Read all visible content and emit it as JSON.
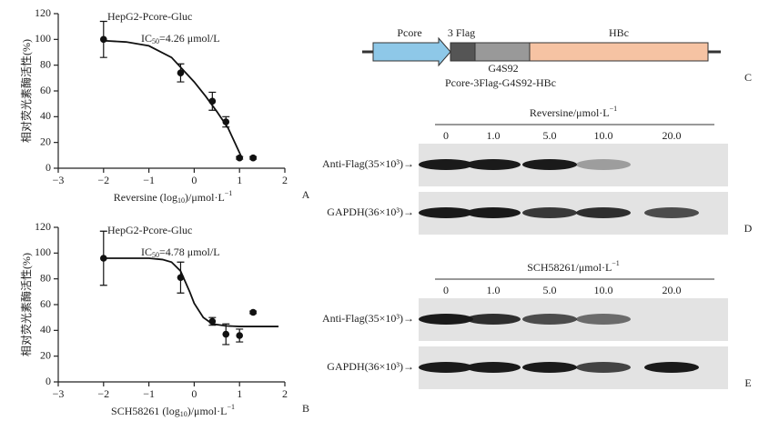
{
  "chart_data": [
    {
      "type": "scatter",
      "panel": "A",
      "title": "HepG2-Pcore-Gluc",
      "annotation": [
        "IC",
        "50",
        "=4.26 μmol/L"
      ],
      "xlabel": [
        "Reversine (log",
        "10",
        ")/μmol·L",
        "−1"
      ],
      "ylabel": "相对荧光素酶活性(%)",
      "x": [
        -2,
        -0.3,
        0.4,
        0.7,
        1,
        1.3
      ],
      "values": [
        100,
        74,
        52,
        36,
        8,
        8
      ],
      "errors": [
        14,
        7,
        7,
        4,
        1,
        1
      ],
      "curve": {
        "x": [
          -2,
          -1.5,
          -1,
          -0.5,
          0,
          0.25,
          0.5,
          0.75,
          1,
          1.05
        ],
        "y": [
          99,
          98,
          95,
          86,
          67,
          56,
          44,
          31,
          12,
          8
        ]
      },
      "xlim": [
        -3,
        2
      ],
      "ylim": [
        0,
        120
      ],
      "xticks": [
        {
          "value": -3,
          "label": "−3"
        },
        {
          "value": -2,
          "label": "−2"
        },
        {
          "value": -1,
          "label": "−1"
        },
        0,
        1,
        2
      ],
      "yticks": [
        0,
        20,
        40,
        60,
        80,
        100,
        120
      ],
      "color": "#111"
    },
    {
      "type": "scatter",
      "panel": "B",
      "title": "HepG2-Pcore-Gluc",
      "annotation": [
        "IC",
        "50",
        "=4.78 μmol/L"
      ],
      "xlabel": [
        "SCH58261 (log",
        "10",
        ")/μmol·L",
        "−1"
      ],
      "ylabel": "相对荧光素酶活性(%)",
      "x": [
        -2,
        -0.3,
        0.4,
        0.7,
        1,
        1.3
      ],
      "values": [
        96,
        81,
        47,
        37,
        36,
        54
      ],
      "errors": [
        21,
        12,
        3,
        8,
        5,
        1
      ],
      "curve": {
        "x": [
          -2,
          -1,
          -0.7,
          -0.5,
          -0.3,
          -0.1,
          0,
          0.2,
          0.4,
          0.7,
          1,
          1.3,
          1.86
        ],
        "y": [
          96,
          96,
          95,
          93,
          86,
          70,
          61,
          50,
          45,
          43.5,
          43,
          43,
          43
        ]
      },
      "xlim": [
        -3,
        2
      ],
      "ylim": [
        0,
        120
      ],
      "xticks": [
        {
          "value": -3,
          "label": "−3"
        },
        {
          "value": -2,
          "label": "−2"
        },
        {
          "value": -1,
          "label": "−1"
        },
        0,
        1,
        2
      ],
      "yticks": [
        0,
        20,
        40,
        60,
        80,
        100,
        120
      ],
      "color": "#111"
    }
  ],
  "diagram": {
    "pcore": "Pcore",
    "flag": "3 Flag",
    "hbc": "HBc",
    "linker": "G4S92",
    "construct": "Pcore-3Flag-G4S92-HBc",
    "panel": "C"
  },
  "blots": [
    {
      "panel": "D",
      "header": [
        "Reversine/μmol·L",
        "−1"
      ],
      "doses": [
        "0",
        "1.0",
        "5.0",
        "10.0",
        "20.0"
      ],
      "rows": [
        "Anti-Flag(35×10³)→",
        "GAPDH(36×10³)→"
      ]
    },
    {
      "panel": "E",
      "header": [
        "SCH58261/μmol·L",
        "−1"
      ],
      "doses": [
        "0",
        "1.0",
        "5.0",
        "10.0",
        "20.0"
      ],
      "rows": [
        "Anti-Flag(35×10³)→",
        "GAPDH(36×10³)→"
      ]
    }
  ]
}
